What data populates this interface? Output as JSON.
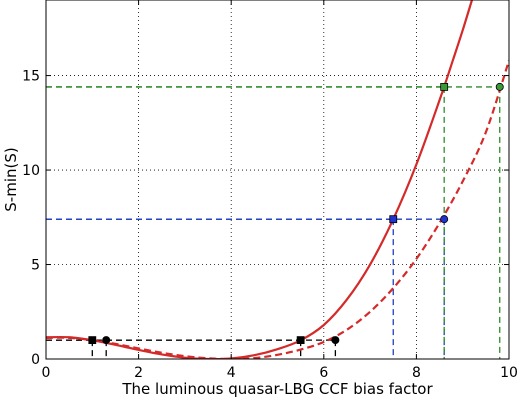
{
  "chart_data": {
    "type": "line",
    "xlabel": "The luminous quasar-LBG CCF bias factor",
    "ylabel": "S-min(S)",
    "xlim": [
      0,
      10
    ],
    "ylim": [
      0,
      19
    ],
    "xticks": [
      0,
      2,
      4,
      6,
      8,
      10
    ],
    "yticks": [
      0,
      5,
      10,
      15
    ],
    "grid": true,
    "colors": {
      "solid_curve": "#d42a2a",
      "dashed_curve": "#d42a2a",
      "black_markers": "#000000",
      "blue_markers": "#1f3fbf",
      "green_markers": "#2e8b2e",
      "marker_fill_green": "#3a9a3a",
      "marker_fill_blue": "#2233cc"
    },
    "series": [
      {
        "style": "solid",
        "x": [
          0.0,
          0.5,
          1.0,
          1.5,
          2.0,
          2.5,
          3.0,
          3.5,
          4.0,
          4.5,
          5.0,
          5.5,
          6.0,
          6.5,
          7.0,
          7.5,
          8.0,
          8.5,
          8.8,
          9.0,
          9.2
        ],
        "y": [
          1.15,
          1.15,
          0.99,
          0.75,
          0.48,
          0.24,
          0.07,
          0.0,
          0.03,
          0.2,
          0.52,
          0.99,
          1.8,
          3.15,
          5.0,
          7.4,
          10.3,
          13.7,
          15.9,
          17.4,
          19.0
        ]
      },
      {
        "style": "dashed",
        "x": [
          0.0,
          0.5,
          1.0,
          1.5,
          2.0,
          2.5,
          3.0,
          3.5,
          4.0,
          4.5,
          5.0,
          5.5,
          6.0,
          6.5,
          7.0,
          7.5,
          8.0,
          8.5,
          9.0,
          9.5,
          10.0
        ],
        "y": [
          1.12,
          1.12,
          1.0,
          0.8,
          0.56,
          0.33,
          0.15,
          0.04,
          0.0,
          0.05,
          0.22,
          0.5,
          0.9,
          1.55,
          2.5,
          3.75,
          5.3,
          7.2,
          9.4,
          12.0,
          15.8
        ]
      }
    ],
    "guides": [
      {
        "color_key": "black_markers",
        "y": 1.0,
        "xs": [
          1.0,
          5.5
        ],
        "marker": "square",
        "curve": "solid"
      },
      {
        "color_key": "black_markers",
        "y": 1.0,
        "xs": [
          1.3,
          6.25
        ],
        "marker": "circle",
        "curve": "dashed"
      },
      {
        "color_key": "blue_markers",
        "y": 7.4,
        "xs": [
          7.5
        ],
        "marker": "square",
        "curve": "solid"
      },
      {
        "color_key": "blue_markers",
        "y": 7.4,
        "xs": [
          8.6
        ],
        "marker": "circle",
        "curve": "dashed"
      },
      {
        "color_key": "green_markers",
        "y": 14.4,
        "xs": [
          8.6
        ],
        "marker": "square",
        "curve": "solid"
      },
      {
        "color_key": "green_markers",
        "y": 14.4,
        "xs": [
          9.8
        ],
        "marker": "circle",
        "curve": "dashed"
      }
    ]
  }
}
